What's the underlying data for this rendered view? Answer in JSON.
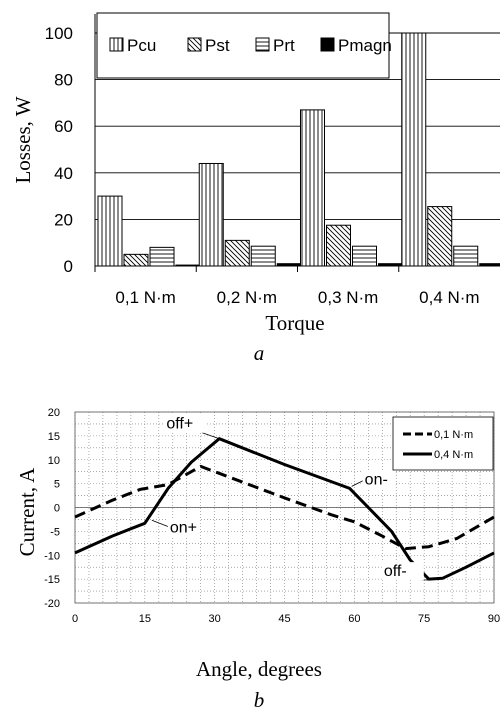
{
  "chart_data": [
    {
      "type": "bar",
      "categories": [
        "0,1 N·m",
        "0,2 N·m",
        "0,3 N·m",
        "0,4 N·m"
      ],
      "series": [
        {
          "name": "Pcu",
          "values": [
            30,
            44,
            67,
            100
          ]
        },
        {
          "name": "Pst",
          "values": [
            5,
            11,
            17.5,
            25.5
          ]
        },
        {
          "name": "Prt",
          "values": [
            8,
            8.5,
            8.5,
            8.5
          ]
        },
        {
          "name": "Pmagn",
          "values": [
            0.4,
            1,
            1,
            1
          ]
        }
      ],
      "xlabel": "Torque",
      "ylabel": "Losses, W",
      "ylim": [
        0,
        100
      ],
      "yticks": [
        "0",
        "20",
        "40",
        "60",
        "80",
        "100"
      ],
      "grid": true,
      "legend": "top",
      "caption": "a"
    },
    {
      "type": "line",
      "x": [
        0,
        15,
        30,
        45,
        60,
        75,
        90
      ],
      "xticks": [
        "0",
        "15",
        "30",
        "45",
        "60",
        "75",
        "90"
      ],
      "yticks": [
        "20",
        "15",
        "10",
        "5",
        "0",
        "-5",
        "-10",
        "-15",
        "-20"
      ],
      "xlim": [
        0,
        90
      ],
      "ylim": [
        -20,
        20
      ],
      "xlabel": "Angle, degrees",
      "ylabel": "Current, A",
      "grid": true,
      "legend": "top-right",
      "series": [
        {
          "name": "0,1 N·m",
          "style": "dashed",
          "points": [
            [
              0,
              -2
            ],
            [
              8,
              1.5
            ],
            [
              14,
              3.8
            ],
            [
              20,
              4.8
            ],
            [
              27,
              8.6
            ],
            [
              45,
              2
            ],
            [
              55,
              -1.5
            ],
            [
              60,
              -3
            ],
            [
              66,
              -6
            ],
            [
              71,
              -8.6
            ],
            [
              76,
              -8.2
            ],
            [
              82,
              -6.5
            ],
            [
              90,
              -2
            ]
          ]
        },
        {
          "name": "0,4 N·m",
          "style": "solid",
          "points": [
            [
              0,
              -9.5
            ],
            [
              8,
              -6
            ],
            [
              15,
              -3.3
            ],
            [
              20,
              4
            ],
            [
              25,
              9.5
            ],
            [
              31,
              14.4
            ],
            [
              45,
              9
            ],
            [
              59,
              4
            ],
            [
              68,
              -5
            ],
            [
              72,
              -11
            ],
            [
              76,
              -15
            ],
            [
              79,
              -14.8
            ],
            [
              84,
              -12.5
            ],
            [
              90,
              -9.5
            ]
          ]
        }
      ],
      "annotations": [
        {
          "text": "off+",
          "at": [
            31,
            14.4
          ]
        },
        {
          "text": "on+",
          "at": [
            15,
            -3.3
          ]
        },
        {
          "text": "on-",
          "at": [
            59,
            4
          ]
        },
        {
          "text": "off-",
          "at": [
            76,
            -15
          ]
        }
      ],
      "caption": "b"
    }
  ]
}
